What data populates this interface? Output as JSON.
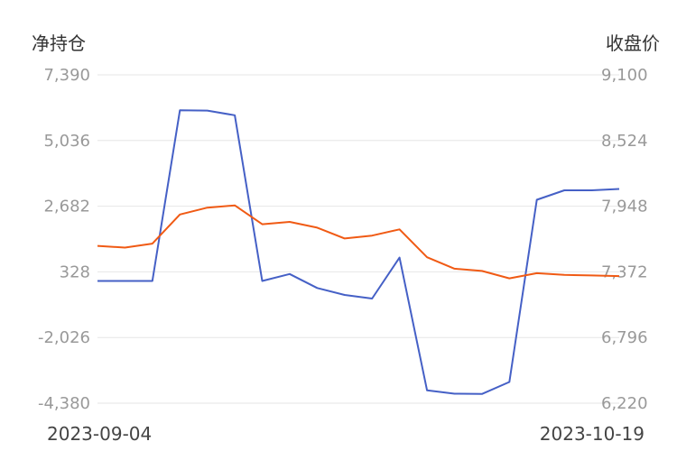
{
  "chart_data": {
    "type": "line",
    "left_axis_title": "净持仓",
    "right_axis_title": "收盘价",
    "left_ticks": [
      "7,390",
      "5,036",
      "2,682",
      "328",
      "-2,026",
      "-4,380"
    ],
    "right_ticks": [
      "9,100",
      "8,524",
      "7,948",
      "7,372",
      "6,796",
      "6,220"
    ],
    "left_ylim": [
      -4380,
      7390
    ],
    "right_ylim": [
      6220,
      9100
    ],
    "x_start_label": "2023-09-04",
    "x_end_label": "2023-10-19",
    "grid": true,
    "legend": "none",
    "series": [
      {
        "axis": "left",
        "color": "#4560c6",
        "values": [
          0,
          0,
          0,
          6120,
          6110,
          5940,
          0,
          250,
          -250,
          -500,
          -630,
          840,
          -3920,
          -4040,
          -4050,
          -3620,
          2910,
          3250,
          3250,
          3300
        ]
      },
      {
        "axis": "right",
        "color": "#f05a14",
        "values": [
          7600,
          7585,
          7620,
          7875,
          7935,
          7955,
          7790,
          7810,
          7760,
          7665,
          7690,
          7745,
          7500,
          7400,
          7380,
          7315,
          7360,
          7345,
          7340,
          7335
        ]
      }
    ]
  }
}
